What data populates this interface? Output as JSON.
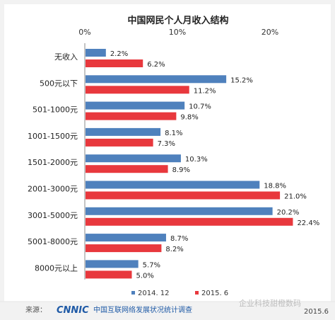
{
  "chart_data": {
    "type": "bar",
    "orientation": "horizontal",
    "title": "中国网民个人月收入结构",
    "categories": [
      "无收入",
      "500元以下",
      "501-1000元",
      "1001-1500元",
      "1501-2000元",
      "2001-3000元",
      "3001-5000元",
      "5001-8000元",
      "8000元以上"
    ],
    "series": [
      {
        "name": "2014. 12",
        "color": "#4f81bd",
        "values": [
          2.2,
          15.2,
          10.7,
          8.1,
          10.3,
          18.8,
          20.2,
          8.7,
          5.7
        ],
        "labels": [
          "2.2%",
          "15.2%",
          "10.7%",
          "8.1%",
          "10.3%",
          "18.8%",
          "20.2%",
          "8.7%",
          "5.7%"
        ]
      },
      {
        "name": "2015. 6",
        "color": "#e8383d",
        "values": [
          6.2,
          11.2,
          9.8,
          7.3,
          8.9,
          21.0,
          22.4,
          8.2,
          5.0
        ],
        "labels": [
          "6.2%",
          "11.2%",
          "9.8%",
          "7.3%",
          "8.9%",
          "21.0%",
          "22.4%",
          "8.2%",
          "5.0%"
        ]
      }
    ],
    "xlim": [
      0,
      25
    ],
    "xticks": [
      0,
      10,
      20
    ],
    "xtick_labels": [
      "0%",
      "10%",
      "20%"
    ],
    "axis_position": "top",
    "grid": false,
    "legend": "bottom"
  },
  "footer": {
    "source_label": "来源：",
    "org_logo": "CNNIC",
    "org_name": "中国互联网络发展状况统计调查",
    "watermark": "企业科技甜橙数码",
    "date": "2015.6"
  }
}
